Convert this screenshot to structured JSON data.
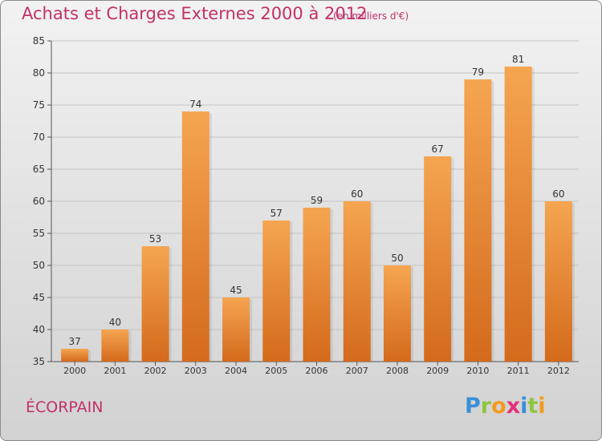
{
  "header": {
    "title": "Achats et Charges Externes 2000 à 2012",
    "subtitle": "(en milliers d'€)"
  },
  "footer": {
    "commune": "ÉCORPAIN",
    "logo_letters": [
      "P",
      "r",
      "o",
      "x",
      "i",
      "t",
      "i"
    ],
    "logo_colors": [
      "#3a8fd6",
      "#8cc63f",
      "#f39a1e",
      "#e5307a",
      "#3a8fd6",
      "#8cc63f",
      "#f39a1e"
    ]
  },
  "colors": {
    "bar_top": "#f5a550",
    "bar_bottom": "#d46a1c",
    "grid": "#c4c4c4",
    "axis_text": "#333333",
    "brand": "#c2306a"
  },
  "chart_data": {
    "type": "bar",
    "title": "Achats et Charges Externes 2000 à 2012",
    "subtitle": "(en milliers d'€)",
    "categories": [
      "2000",
      "2001",
      "2002",
      "2003",
      "2004",
      "2005",
      "2006",
      "2007",
      "2008",
      "2009",
      "2010",
      "2011",
      "2012"
    ],
    "values": [
      37,
      40,
      53,
      74,
      45,
      57,
      59,
      60,
      50,
      67,
      79,
      81,
      60
    ],
    "ylim": [
      35,
      85
    ],
    "yticks": [
      35,
      40,
      45,
      50,
      55,
      60,
      65,
      70,
      75,
      80,
      85
    ],
    "grid": true,
    "xlabel": "",
    "ylabel": ""
  }
}
